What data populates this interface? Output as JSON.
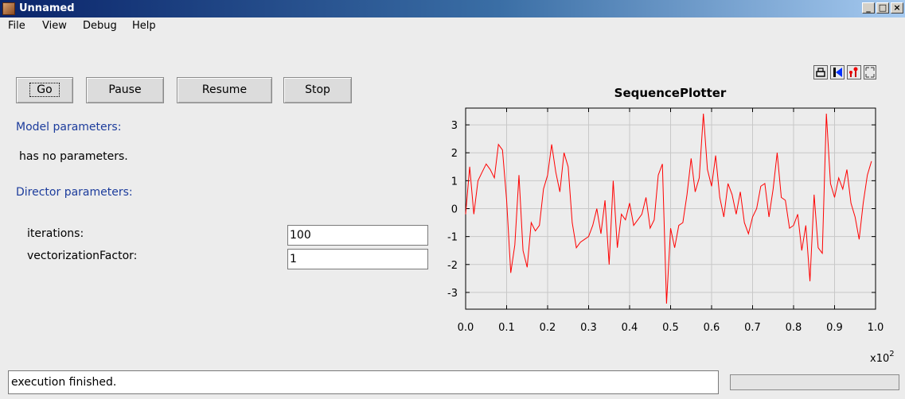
{
  "window": {
    "title": "Unnamed",
    "icon": "ptolemy-app-icon"
  },
  "menu": {
    "items": [
      "File",
      "View",
      "Debug",
      "Help"
    ]
  },
  "controls": {
    "go": "Go",
    "pause": "Pause",
    "resume": "Resume",
    "stop": "Stop"
  },
  "model": {
    "heading": "Model parameters:",
    "none": "has no parameters."
  },
  "director": {
    "heading": "Director parameters:",
    "iterations_label": "iterations:",
    "iterations_value": "100",
    "vectorization_label": "vectorizationFactor:",
    "vectorization_value": "1"
  },
  "plot_toolbar": {
    "icons": [
      "print-icon",
      "reset-axes-icon",
      "format-icon",
      "fill-icon"
    ]
  },
  "status": {
    "text": "execution finished."
  },
  "chart_data": {
    "type": "line",
    "title": "SequencePlotter",
    "x_ticks": [
      "0.0",
      "0.1",
      "0.2",
      "0.3",
      "0.4",
      "0.5",
      "0.6",
      "0.7",
      "0.8",
      "0.9",
      "1.0"
    ],
    "y_ticks": [
      "3",
      "2",
      "1",
      "0",
      "-1",
      "-2",
      "-3"
    ],
    "x_exponent": "x10",
    "x_exponent_power": "2",
    "xlim": [
      0,
      100
    ],
    "ylim": [
      -3.6,
      3.6
    ],
    "grid": true,
    "series": [
      {
        "color": "#ff0000",
        "x": [
          0,
          1,
          2,
          3,
          4,
          5,
          6,
          7,
          8,
          9,
          10,
          11,
          12,
          13,
          14,
          15,
          16,
          17,
          18,
          19,
          20,
          21,
          22,
          23,
          24,
          25,
          26,
          27,
          28,
          29,
          30,
          31,
          32,
          33,
          34,
          35,
          36,
          37,
          38,
          39,
          40,
          41,
          42,
          43,
          44,
          45,
          46,
          47,
          48,
          49,
          50,
          51,
          52,
          53,
          54,
          55,
          56,
          57,
          58,
          59,
          60,
          61,
          62,
          63,
          64,
          65,
          66,
          67,
          68,
          69,
          70,
          71,
          72,
          73,
          74,
          75,
          76,
          77,
          78,
          79,
          80,
          81,
          82,
          83,
          84,
          85,
          86,
          87,
          88,
          89,
          90,
          91,
          92,
          93,
          94,
          95,
          96,
          97,
          98,
          99
        ],
        "values": [
          -0.2,
          1.5,
          -0.2,
          1.0,
          1.3,
          1.6,
          1.4,
          1.1,
          2.3,
          2.1,
          0.3,
          -2.3,
          -1.3,
          1.2,
          -1.5,
          -2.1,
          -0.5,
          -0.8,
          -0.6,
          0.7,
          1.2,
          2.3,
          1.3,
          0.6,
          2.0,
          1.5,
          -0.5,
          -1.4,
          -1.2,
          -1.1,
          -1.0,
          -0.6,
          0.0,
          -0.9,
          0.3,
          -2.0,
          1.0,
          -1.4,
          -0.2,
          -0.4,
          0.2,
          -0.6,
          -0.4,
          -0.2,
          0.4,
          -0.7,
          -0.4,
          1.2,
          1.6,
          -3.4,
          -0.7,
          -1.4,
          -0.6,
          -0.5,
          0.5,
          1.8,
          0.6,
          1.1,
          3.4,
          1.4,
          0.8,
          1.9,
          0.4,
          -0.3,
          0.9,
          0.5,
          -0.2,
          0.6,
          -0.5,
          -0.9,
          -0.3,
          0.0,
          0.8,
          0.9,
          -0.3,
          0.7,
          2.0,
          0.4,
          0.3,
          -0.7,
          -0.6,
          -0.2,
          -1.5,
          -0.6,
          -2.6,
          0.5,
          -1.4,
          -1.6,
          3.4,
          0.9,
          0.4,
          1.1,
          0.7,
          1.4,
          0.2,
          -0.3,
          -1.1,
          0.2,
          1.2,
          1.7
        ]
      }
    ]
  }
}
